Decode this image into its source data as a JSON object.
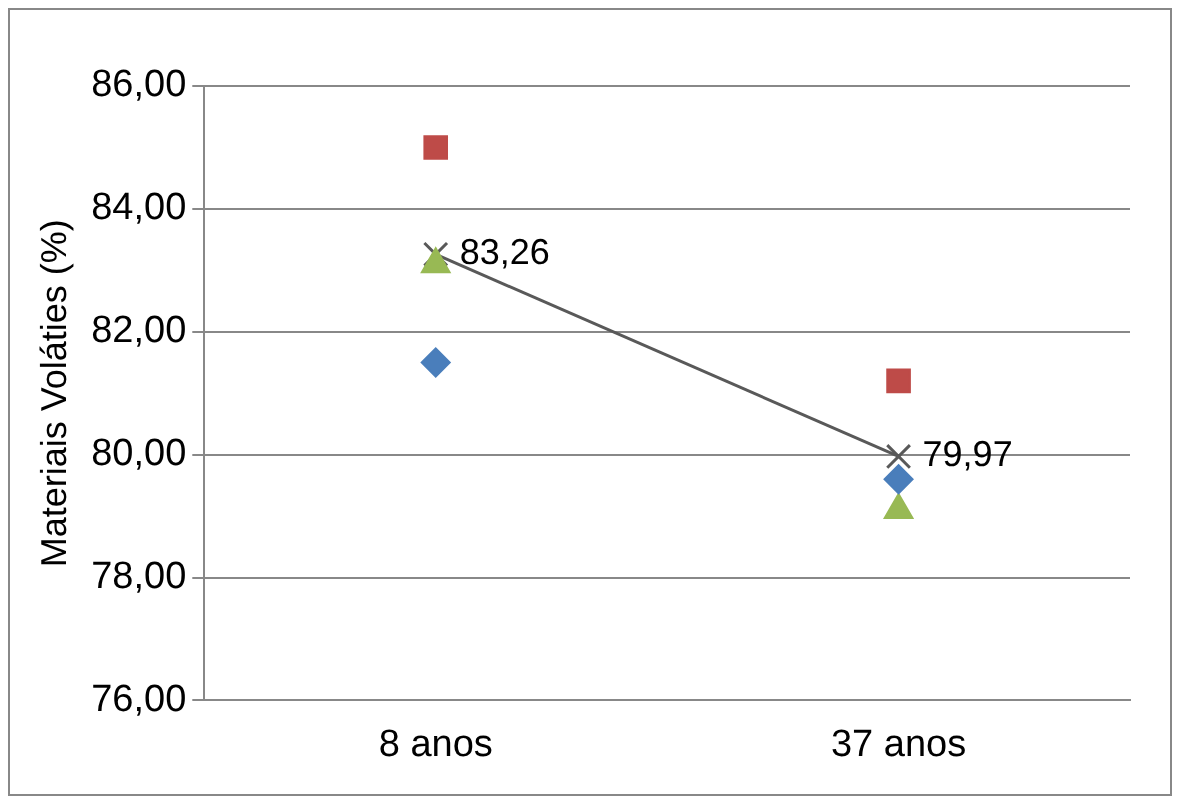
{
  "chart_data": {
    "type": "scatter",
    "ylabel": "Materiais Voláties (%)",
    "categories": [
      "8 anos",
      "37 anos"
    ],
    "series": [
      {
        "color": "#4a7ebb",
        "marker": "diamond",
        "values": [
          81.5,
          79.6
        ]
      },
      {
        "color": "#be4b48",
        "marker": "square",
        "values": [
          85.0,
          81.2
        ]
      },
      {
        "color": "#98b954",
        "marker": "triangle",
        "values": [
          83.1,
          79.1
        ]
      },
      {
        "type": "line",
        "color": "#595959",
        "marker": "cross",
        "values": [
          83.26,
          79.97
        ],
        "value_labels": [
          "83,26",
          "79,97"
        ]
      }
    ],
    "ylim": [
      76,
      86
    ],
    "yticks": [
      {
        "value": 76,
        "label": "76,00"
      },
      {
        "value": 78,
        "label": "78,00"
      },
      {
        "value": 80,
        "label": "80,00"
      },
      {
        "value": 82,
        "label": "82,00"
      },
      {
        "value": 84,
        "label": "84,00"
      },
      {
        "value": 86,
        "label": "86,00"
      }
    ],
    "grid": "y",
    "legend": false
  }
}
